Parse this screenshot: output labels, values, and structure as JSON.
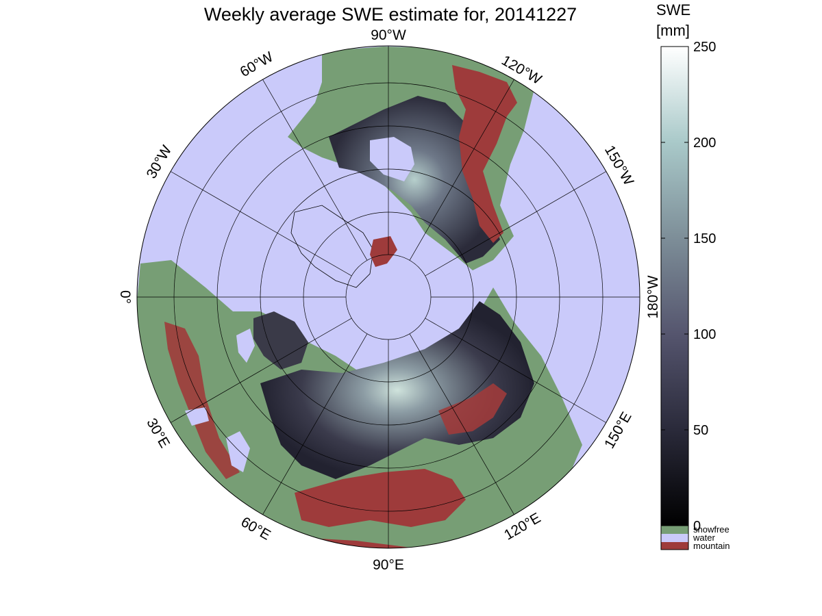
{
  "title": "Weekly average SWE estimate for, 20141227",
  "colorbar": {
    "label_line1": "SWE",
    "label_line2": "[mm]",
    "ticks": [
      "0",
      "50",
      "100",
      "150",
      "200",
      "250"
    ],
    "range": [
      0,
      250
    ],
    "categories": [
      {
        "label": "snowfree",
        "color": "#779e75"
      },
      {
        "label": "water",
        "color": "#cacafa"
      },
      {
        "label": "mountain",
        "color": "#9e3b3b"
      }
    ]
  },
  "map": {
    "projection": "north polar stereographic",
    "background_color": "#cacafa",
    "land_color": "#779e75",
    "mountain_color": "#9e3b3b",
    "longitude_labels": [
      {
        "id": "lon-0",
        "text": "0°"
      },
      {
        "id": "lon-30e",
        "text": "30°E"
      },
      {
        "id": "lon-60e",
        "text": "60°E"
      },
      {
        "id": "lon-90e",
        "text": "90°E"
      },
      {
        "id": "lon-120e",
        "text": "120°E"
      },
      {
        "id": "lon-150e",
        "text": "150°E"
      },
      {
        "id": "lon-180w",
        "text": "180°W"
      },
      {
        "id": "lon-150w",
        "text": "150°W"
      },
      {
        "id": "lon-120w",
        "text": "120°W"
      },
      {
        "id": "lon-90w",
        "text": "90°W"
      },
      {
        "id": "lon-60w",
        "text": "60°W"
      },
      {
        "id": "lon-30w",
        "text": "30°W"
      }
    ]
  }
}
